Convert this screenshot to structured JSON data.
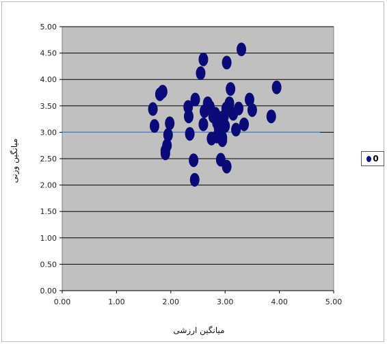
{
  "chart_data": {
    "type": "scatter",
    "xlabel": "میانگین ارزشی",
    "ylabel": "میانگین وزنی",
    "xlim": [
      0,
      5
    ],
    "ylim": [
      0,
      5
    ],
    "x_ticks": [
      "0.00",
      "1.00",
      "2.00",
      "3.00",
      "4.00",
      "5.00"
    ],
    "y_ticks": [
      "0.00",
      "0.50",
      "1.00",
      "1.50",
      "2.00",
      "2.50",
      "3.00",
      "3.50",
      "4.00",
      "4.50",
      "5.00"
    ],
    "grid": "horizontal",
    "legend_position": "right",
    "reference_line": {
      "y": 3.0,
      "x_end": 4.75,
      "color": "#4f81bd"
    },
    "marker_color": "#0a0a78",
    "plot_background": "#c0c0c0",
    "series": [
      {
        "name": "0",
        "points": [
          [
            1.67,
            3.44
          ],
          [
            1.7,
            3.12
          ],
          [
            1.8,
            3.72
          ],
          [
            1.85,
            3.77
          ],
          [
            1.9,
            2.6
          ],
          [
            1.9,
            2.65
          ],
          [
            1.93,
            2.75
          ],
          [
            1.95,
            2.95
          ],
          [
            1.98,
            3.17
          ],
          [
            2.32,
            3.48
          ],
          [
            2.33,
            3.3
          ],
          [
            2.35,
            2.97
          ],
          [
            2.42,
            2.47
          ],
          [
            2.44,
            2.1
          ],
          [
            2.45,
            3.62
          ],
          [
            2.55,
            4.12
          ],
          [
            2.6,
            4.38
          ],
          [
            2.6,
            3.15
          ],
          [
            2.62,
            3.4
          ],
          [
            2.68,
            3.55
          ],
          [
            2.72,
            3.48
          ],
          [
            2.75,
            2.88
          ],
          [
            2.78,
            3.3
          ],
          [
            2.82,
            3.35
          ],
          [
            2.85,
            3.18
          ],
          [
            2.85,
            2.92
          ],
          [
            2.88,
            3.08
          ],
          [
            2.9,
            3.27
          ],
          [
            2.92,
            2.48
          ],
          [
            2.95,
            2.9
          ],
          [
            2.95,
            2.85
          ],
          [
            2.98,
            3.3
          ],
          [
            3.0,
            3.12
          ],
          [
            3.02,
            3.45
          ],
          [
            3.03,
            2.35
          ],
          [
            3.03,
            4.32
          ],
          [
            3.08,
            3.55
          ],
          [
            3.1,
            3.82
          ],
          [
            3.15,
            3.35
          ],
          [
            3.2,
            3.05
          ],
          [
            3.25,
            3.45
          ],
          [
            3.3,
            4.57
          ],
          [
            3.35,
            3.15
          ],
          [
            3.45,
            3.62
          ],
          [
            3.5,
            3.42
          ],
          [
            3.85,
            3.3
          ],
          [
            3.95,
            3.85
          ]
        ]
      }
    ]
  }
}
